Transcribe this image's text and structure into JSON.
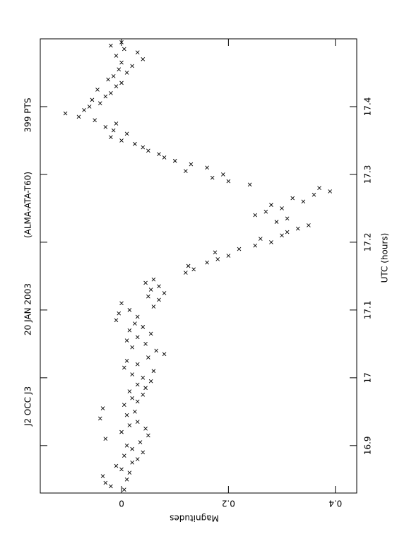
{
  "chart_data": {
    "type": "scatter",
    "title": [
      "J2 OCC J3",
      "20 JAN 2003",
      "(ALMA-ATA-T60)",
      "399  PTS"
    ],
    "x_label": "UTC (hours)",
    "y_label": "Magnitudes",
    "xlim": [
      16.83,
      17.5
    ],
    "xticks": [
      16.9,
      17,
      17.1,
      17.2,
      17.3,
      17.4
    ],
    "ylim": [
      -0.152,
      0.44
    ],
    "yticks": [
      0,
      0.2,
      0.4
    ],
    "color": "#000000",
    "x": [
      16.835,
      16.84,
      16.845,
      16.85,
      16.855,
      16.86,
      16.865,
      16.87,
      16.875,
      16.88,
      16.885,
      16.89,
      16.895,
      16.9,
      16.905,
      16.91,
      16.915,
      16.92,
      16.925,
      16.93,
      16.935,
      16.94,
      16.945,
      16.95,
      16.955,
      16.96,
      16.965,
      16.97,
      16.975,
      16.98,
      16.985,
      16.99,
      16.995,
      17.0,
      17.005,
      17.01,
      17.015,
      17.02,
      17.025,
      17.03,
      17.035,
      17.04,
      17.045,
      17.05,
      17.055,
      17.06,
      17.065,
      17.07,
      17.075,
      17.08,
      17.085,
      17.09,
      17.095,
      17.1,
      17.105,
      17.11,
      17.115,
      17.12,
      17.125,
      17.13,
      17.135,
      17.14,
      17.145,
      17.155,
      17.16,
      17.165,
      17.17,
      17.175,
      17.18,
      17.185,
      17.19,
      17.195,
      17.2,
      17.205,
      17.21,
      17.215,
      17.22,
      17.225,
      17.23,
      17.235,
      17.24,
      17.245,
      17.25,
      17.255,
      17.26,
      17.265,
      17.27,
      17.275,
      17.28,
      17.285,
      17.29,
      17.295,
      17.3,
      17.305,
      17.31,
      17.315,
      17.32,
      17.325,
      17.33,
      17.335,
      17.34,
      17.345,
      17.35,
      17.355,
      17.36,
      17.365,
      17.37,
      17.375,
      17.38,
      17.385,
      17.39,
      17.395,
      17.4,
      17.405,
      17.41,
      17.415,
      17.42,
      17.425,
      17.43,
      17.435,
      17.44,
      17.445,
      17.45,
      17.455,
      17.46,
      17.465,
      17.47,
      17.475,
      17.48,
      17.485,
      17.49,
      17.495
    ],
    "values": [
      0.005,
      -0.02,
      -0.03,
      0.01,
      -0.035,
      0.015,
      0.0,
      -0.01,
      0.02,
      0.03,
      0.005,
      0.04,
      0.02,
      0.01,
      0.035,
      -0.03,
      0.05,
      0.0,
      0.045,
      0.015,
      0.03,
      -0.04,
      0.01,
      0.025,
      -0.035,
      0.005,
      0.03,
      0.02,
      0.04,
      0.015,
      0.045,
      0.03,
      0.055,
      0.04,
      0.02,
      0.06,
      0.005,
      0.03,
      0.01,
      0.05,
      0.08,
      0.065,
      0.02,
      0.045,
      0.01,
      0.03,
      0.055,
      0.015,
      0.04,
      0.025,
      -0.01,
      0.03,
      -0.005,
      0.015,
      0.06,
      0.0,
      0.07,
      0.05,
      0.08,
      0.055,
      0.07,
      0.045,
      0.06,
      0.12,
      0.135,
      0.125,
      0.16,
      0.18,
      0.2,
      0.175,
      0.22,
      0.25,
      0.28,
      0.26,
      0.3,
      0.31,
      0.33,
      0.35,
      0.29,
      0.31,
      0.25,
      0.27,
      0.3,
      0.28,
      0.34,
      0.32,
      0.36,
      0.39,
      0.37,
      0.24,
      0.2,
      0.17,
      0.19,
      0.12,
      0.16,
      0.13,
      0.1,
      0.08,
      0.07,
      0.05,
      0.04,
      0.025,
      0.0,
      -0.02,
      0.01,
      -0.015,
      -0.03,
      -0.01,
      -0.05,
      -0.08,
      -0.105,
      -0.07,
      -0.06,
      -0.04,
      -0.055,
      -0.03,
      -0.02,
      -0.045,
      -0.01,
      0.0,
      -0.025,
      -0.015,
      0.01,
      -0.005,
      0.02,
      0.0,
      0.04,
      -0.01,
      0.03,
      0.005,
      -0.02,
      0.0
    ]
  }
}
